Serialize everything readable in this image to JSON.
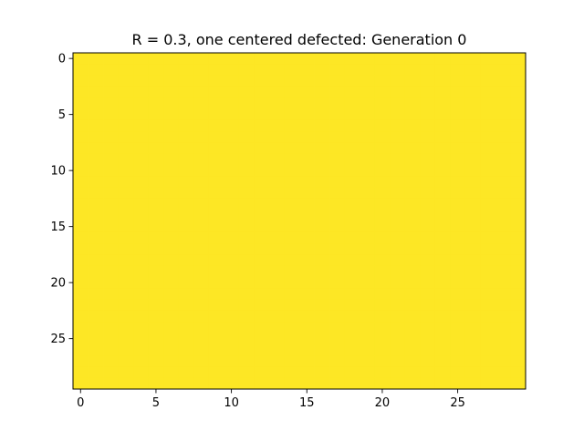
{
  "chart_data": {
    "type": "heatmap",
    "title": "R = 0.3, one centered defected: Generation 0",
    "xlabel": "",
    "ylabel": "",
    "grid": false,
    "rows": 30,
    "cols": 30,
    "x_range": [
      -0.5,
      29.5
    ],
    "y_range": [
      29.5,
      -0.5
    ],
    "x_ticks": [
      0,
      5,
      10,
      15,
      20,
      25
    ],
    "y_ticks": [
      0,
      5,
      10,
      15,
      20,
      25
    ],
    "values_description_uniform": 1,
    "fill_color": "#fde725"
  }
}
